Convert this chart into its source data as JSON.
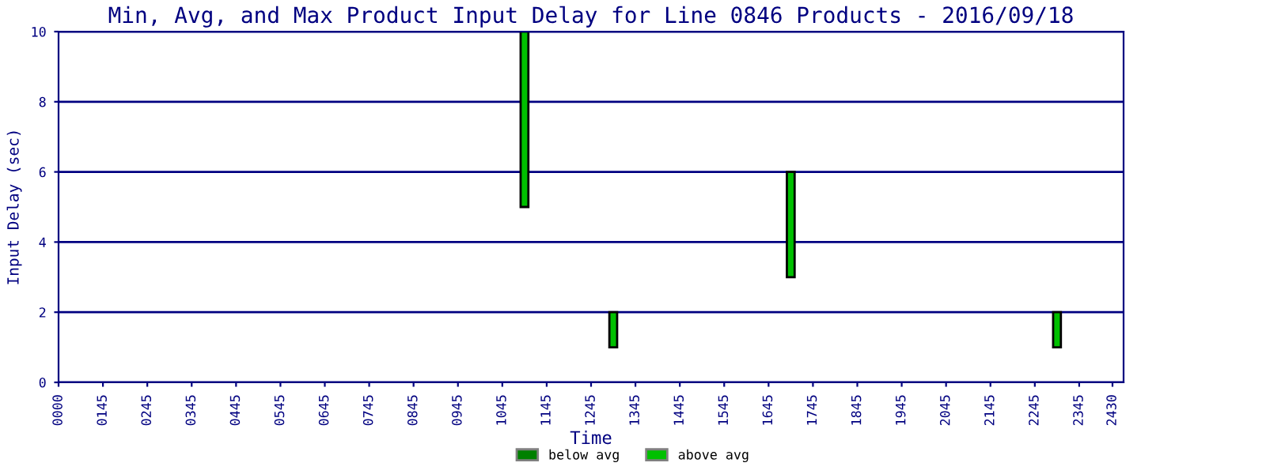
{
  "chart_data": {
    "type": "bar",
    "title": "Min, Avg, and Max Product Input Delay for Line 0846 Products - 2016/09/18",
    "xlabel": "Time",
    "ylabel": "Input Delay (sec)",
    "categories": [
      "0000",
      null,
      null,
      null,
      "0145",
      null,
      null,
      null,
      "0245",
      null,
      null,
      null,
      "0345",
      null,
      null,
      null,
      "0445",
      null,
      null,
      null,
      "0545",
      null,
      null,
      null,
      "0645",
      null,
      null,
      null,
      "0745",
      null,
      null,
      null,
      "0845",
      null,
      null,
      null,
      "0945",
      null,
      null,
      null,
      "1045",
      null,
      null,
      null,
      "1145",
      null,
      null,
      null,
      "1245",
      null,
      null,
      null,
      "1345",
      null,
      null,
      null,
      "1445",
      null,
      null,
      null,
      "1545",
      null,
      null,
      null,
      "1645",
      null,
      null,
      null,
      "1745",
      null,
      null,
      null,
      "1845",
      null,
      null,
      null,
      "1945",
      null,
      null,
      null,
      "2045",
      null,
      null,
      null,
      "2145",
      null,
      null,
      null,
      "2245",
      null,
      null,
      null,
      "2345",
      null,
      null,
      "2430"
    ],
    "series": [
      {
        "name": "below avg",
        "color": "#008000",
        "values": [
          null,
          null,
          null,
          null,
          null,
          null,
          null,
          null,
          null,
          null,
          null,
          null,
          null,
          null,
          null,
          null,
          null,
          null,
          null,
          null,
          null,
          null,
          null,
          null,
          null,
          null,
          null,
          null,
          null,
          null,
          null,
          null,
          null,
          null,
          null,
          null,
          null,
          null,
          null,
          null,
          null,
          null,
          null,
          null,
          null,
          null,
          null,
          null,
          null,
          null,
          null,
          null,
          null,
          null,
          null,
          null,
          null,
          null,
          null,
          null,
          null,
          null,
          null,
          null,
          null,
          null,
          null,
          null,
          null,
          null,
          null,
          null,
          null,
          null,
          null,
          null,
          null,
          null,
          null,
          null,
          null,
          null,
          null,
          null,
          null,
          null,
          null,
          null,
          null,
          null,
          null,
          null,
          null,
          null,
          null,
          null
        ]
      },
      {
        "name": "above avg",
        "color": "#00c000",
        "base": [
          null,
          null,
          null,
          null,
          null,
          null,
          null,
          null,
          null,
          null,
          null,
          null,
          null,
          null,
          null,
          null,
          null,
          null,
          null,
          null,
          null,
          null,
          null,
          null,
          null,
          null,
          null,
          null,
          null,
          null,
          null,
          null,
          null,
          null,
          null,
          null,
          null,
          null,
          null,
          null,
          null,
          null,
          5,
          null,
          null,
          null,
          null,
          null,
          null,
          null,
          1,
          null,
          null,
          null,
          null,
          null,
          null,
          null,
          null,
          null,
          null,
          null,
          null,
          null,
          null,
          null,
          3,
          null,
          null,
          null,
          null,
          null,
          null,
          null,
          null,
          null,
          null,
          null,
          null,
          null,
          null,
          null,
          null,
          null,
          null,
          null,
          null,
          null,
          null,
          null,
          1,
          null,
          null,
          null,
          null,
          null
        ],
        "values": [
          null,
          null,
          null,
          null,
          null,
          null,
          null,
          null,
          null,
          null,
          null,
          null,
          null,
          null,
          null,
          null,
          null,
          null,
          null,
          null,
          null,
          null,
          null,
          null,
          null,
          null,
          null,
          null,
          null,
          null,
          null,
          null,
          null,
          null,
          null,
          null,
          null,
          null,
          null,
          null,
          null,
          null,
          5,
          null,
          null,
          null,
          null,
          null,
          null,
          null,
          1,
          null,
          null,
          null,
          null,
          null,
          null,
          null,
          null,
          null,
          null,
          null,
          null,
          null,
          null,
          null,
          3,
          null,
          null,
          null,
          null,
          null,
          null,
          null,
          null,
          null,
          null,
          null,
          null,
          null,
          null,
          null,
          null,
          null,
          null,
          null,
          null,
          null,
          null,
          null,
          1,
          null,
          null,
          null,
          null,
          null
        ]
      }
    ],
    "ylim": [
      0,
      10
    ],
    "yticks": [
      0,
      2,
      4,
      6,
      8,
      10
    ],
    "grid": "y",
    "legend": "bottom"
  }
}
